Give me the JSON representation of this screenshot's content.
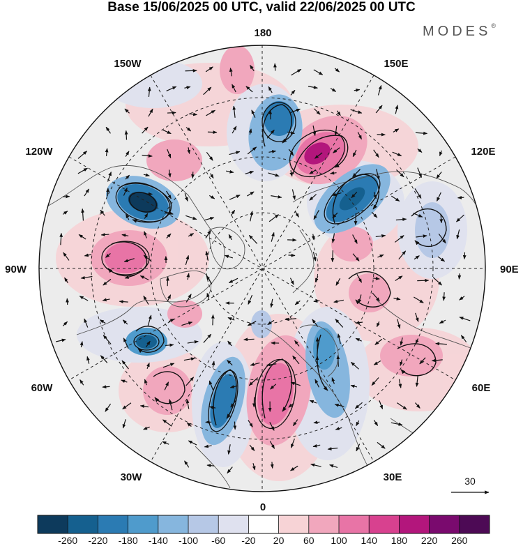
{
  "title": "Base 15/06/2025 00 UTC, valid 22/06/2025 00 UTC",
  "logo": "MODES",
  "logo_mark": "®",
  "longitude_labels": {
    "top": "180",
    "bottom": "0",
    "left": "90W",
    "right": "90E",
    "upper_left_inner": "150W",
    "upper_right_inner": "150E",
    "upper_left_outer": "120W",
    "upper_right_outer": "120E",
    "lower_left_outer": "60W",
    "lower_right_outer": "60E",
    "lower_left_inner": "30W",
    "lower_right_inner": "30E"
  },
  "reference_vector": {
    "label": "30"
  },
  "colorbar": {
    "ticks": [
      "-260",
      "-220",
      "-180",
      "-140",
      "-100",
      "-60",
      "-20",
      "20",
      "60",
      "100",
      "140",
      "180",
      "220",
      "260"
    ],
    "colors": [
      "#0d3a5c",
      "#15608f",
      "#2b7bb3",
      "#4f9bcc",
      "#86b6de",
      "#b6c8e6",
      "#dfe1ef",
      "#ffffff",
      "#f7d3d6",
      "#f1a7bd",
      "#e874a6",
      "#d8418f",
      "#b3167c",
      "#7a0a6e",
      "#4d0a55"
    ]
  },
  "map": {
    "projection": "north-polar-stereographic",
    "neutral_fill": "#ececec"
  }
}
